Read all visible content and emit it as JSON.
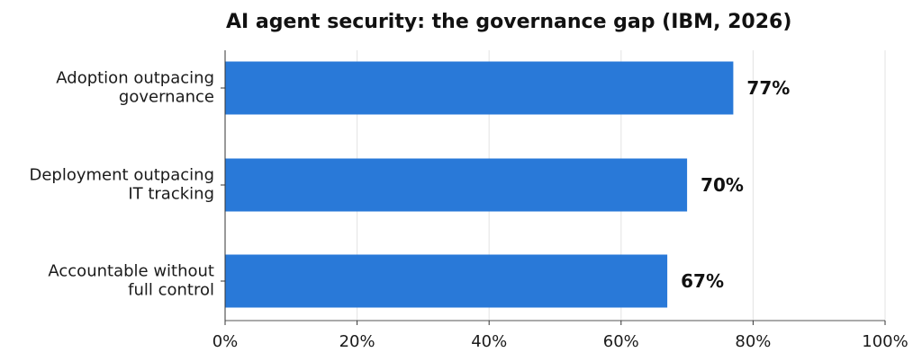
{
  "chart_data": {
    "type": "bar",
    "orientation": "horizontal",
    "title": "AI agent security: the governance gap (IBM, 2026)",
    "categories": [
      [
        "Adoption outpacing",
        "governance"
      ],
      [
        "Deployment outpacing",
        "IT tracking"
      ],
      [
        "Accountable without",
        "full control"
      ]
    ],
    "values": [
      77,
      70,
      67
    ],
    "value_labels": [
      "77%",
      "70%",
      "67%"
    ],
    "xlim": [
      0,
      100
    ],
    "x_ticks": [
      0,
      20,
      40,
      60,
      80,
      100
    ],
    "x_tick_labels": [
      "0%",
      "20%",
      "40%",
      "60%",
      "80%",
      "100%"
    ],
    "grid": "vertical",
    "bar_color": "#2979d8",
    "grid_color": "#e3e3e3"
  }
}
